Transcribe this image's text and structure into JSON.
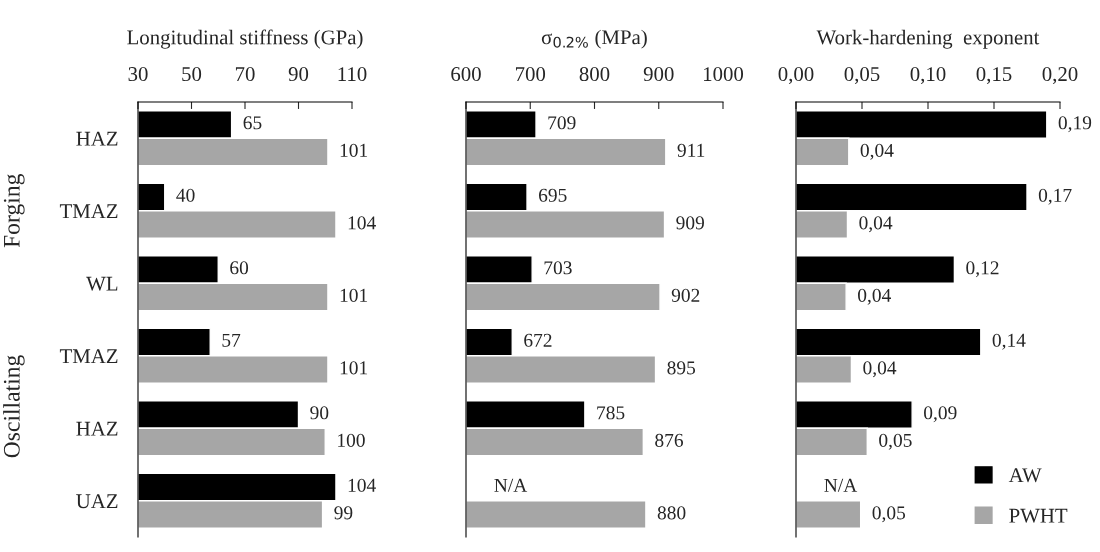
{
  "chart_data": [
    {
      "type": "bar",
      "orientation": "horizontal",
      "xlabel": "Longitudinal stiffness (GPa)",
      "categories": [
        "HAZ",
        "TMAZ",
        "WL",
        "TMAZ",
        "HAZ",
        "UAZ"
      ],
      "annotations": [
        "Forging",
        "Oscillating"
      ],
      "xlim": [
        30,
        110
      ],
      "xticks": [
        30,
        50,
        70,
        90,
        110
      ],
      "data_labels": true,
      "legend": false,
      "series": [
        {
          "color": "#000000",
          "values": [
            65,
            40,
            60,
            57,
            90,
            104
          ]
        },
        {
          "color": "#a6a6a6",
          "values": [
            101,
            104,
            101,
            101,
            100,
            99
          ]
        }
      ]
    },
    {
      "type": "bar",
      "orientation": "horizontal",
      "xlabel": "σ$_{0.2%}$ (MPa)",
      "categories": [
        null,
        null,
        null,
        null,
        null,
        null
      ],
      "xlim": [
        600,
        1000
      ],
      "xticks": [
        600,
        700,
        800,
        900,
        1000
      ],
      "legend": false,
      "series": [
        {
          "color": "#000000",
          "values": [
            709,
            695,
            703,
            672,
            785,
            null
          ],
          "value_labels": [
            "709",
            "695",
            "703",
            "672",
            "785",
            "N/A"
          ]
        },
        {
          "color": "#a6a6a6",
          "values": [
            911,
            909,
            902,
            895,
            876,
            880
          ],
          "value_labels": [
            "911",
            "909",
            "902",
            "895",
            "876",
            "880"
          ]
        }
      ]
    },
    {
      "type": "bar",
      "orientation": "horizontal",
      "xlabel": "Work-hardening  exponent",
      "categories": [
        null,
        null,
        null,
        null,
        null,
        null
      ],
      "xlim": [
        0,
        0.2
      ],
      "xticks": [
        {
          "value": 0,
          "label": "0,00"
        },
        {
          "value": 0.05,
          "label": "0,05"
        },
        {
          "value": 0.1,
          "label": "0,10"
        },
        {
          "value": 0.15,
          "label": "0,15"
        },
        {
          "value": 0.2,
          "label": "0,20"
        }
      ],
      "legend": "bottom right",
      "series": [
        {
          "name": "AW",
          "color": "#000000",
          "values": [
            0.19,
            0.175,
            0.12,
            0.14,
            0.088,
            null
          ],
          "value_labels": [
            "0,19",
            "0,17",
            "0,12",
            "0,14",
            "0,09",
            "N/A"
          ]
        },
        {
          "name": "PWHT",
          "color": "#a6a6a6",
          "values": [
            0.04,
            0.039,
            0.038,
            0.042,
            0.054,
            0.049
          ],
          "value_labels": [
            "0,04",
            "0,04",
            "0,04",
            "0,04",
            "0,05",
            "0,05"
          ]
        }
      ]
    }
  ]
}
